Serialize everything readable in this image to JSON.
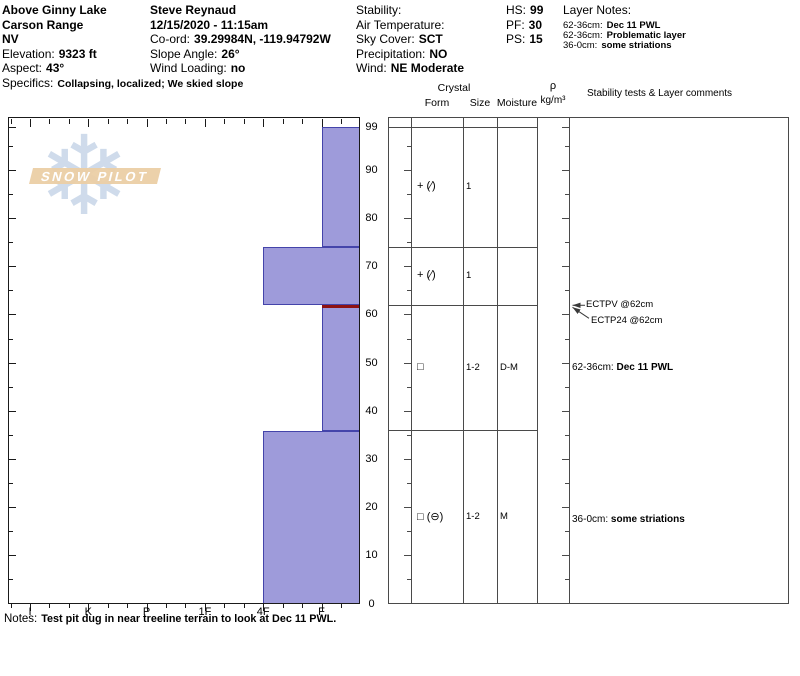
{
  "header": {
    "location": {
      "line1": "Above Ginny Lake",
      "line2": "Carson Range",
      "line3": "NV",
      "elevation_label": "Elevation:",
      "elevation": "9323 ft",
      "aspect_label": "Aspect:",
      "aspect": "43°",
      "specifics_label": "Specifics:",
      "specifics": "Collapsing, localized; We skied slope"
    },
    "observer": {
      "name": "Steve Reynaud",
      "datetime": "12/15/2020 - 11:15am",
      "coord_label": "Co-ord:",
      "coord": "39.29984N, -119.94792W",
      "slope_angle_label": "Slope Angle:",
      "slope_angle": "26°",
      "wind_loading_label": "Wind Loading:",
      "wind_loading": "no"
    },
    "conditions": {
      "stability_label": "Stability:",
      "air_temp_label": "Air Temperature:",
      "sky_label": "Sky Cover:",
      "sky": "SCT",
      "precip_label": "Precipitation:",
      "precip": "NO",
      "wind_label": "Wind:",
      "wind": "NE Moderate"
    },
    "measures": [
      {
        "label": "HS:",
        "value": "99"
      },
      {
        "label": "PF:",
        "value": "30"
      },
      {
        "label": "PS:",
        "value": "15"
      }
    ],
    "layer_notes": {
      "title": "Layer Notes:",
      "items": [
        {
          "range": "62-36cm:",
          "note": "Dec 11 PWL"
        },
        {
          "range": "62-36cm:",
          "note": "Problematic layer"
        },
        {
          "range": "36-0cm:",
          "note": "some striations"
        }
      ]
    }
  },
  "table_headers": {
    "crystal": "Crystal",
    "form": "Form",
    "size": "Size",
    "moisture": "Moisture",
    "rho": "ρ",
    "rho_units": "kg/m³",
    "stability": "Stability tests & Layer comments"
  },
  "logo": {
    "snowflake": "❄",
    "text": "SNOW PILOT"
  },
  "notes": {
    "label": "Notes:",
    "text": "Test pit dug in near treeline terrain to look at Dec 11 PWL."
  },
  "chart_data": {
    "type": "snow-profile-bar",
    "title": "",
    "depth_axis": {
      "unit": "cm",
      "max": 99,
      "tick_minor": 5,
      "tick_major": 10,
      "labels": [
        99,
        90,
        80,
        70,
        60,
        50,
        40,
        30,
        20,
        10,
        0
      ]
    },
    "hardness_categories": [
      "I",
      "K",
      "P",
      "1F",
      "4F",
      "F"
    ],
    "layers": [
      {
        "top_cm": 99,
        "bottom_cm": 74,
        "hardness": "F",
        "form": "+ (∕)",
        "size": "1",
        "moisture": "",
        "red_top": false
      },
      {
        "top_cm": 74,
        "bottom_cm": 62,
        "hardness": "4F",
        "form": "+ (∕)",
        "size": "1",
        "moisture": "",
        "red_top": false
      },
      {
        "top_cm": 62,
        "bottom_cm": 36,
        "hardness": "F",
        "form": "□",
        "size": "1-2",
        "moisture": "D-M",
        "red_top": true
      },
      {
        "top_cm": 36,
        "bottom_cm": 0,
        "hardness": "4F",
        "form": "□ (⊖)",
        "size": "1-2",
        "moisture": "M",
        "red_top": false
      }
    ],
    "tests": [
      {
        "label": "ECTPV @62cm",
        "depth_cm": 62
      },
      {
        "label": "ECTP24 @62cm",
        "depth_cm": 62
      }
    ],
    "comments": [
      {
        "range": "62-36cm:",
        "text": "Dec 11 PWL",
        "depth_cm": 49
      },
      {
        "range": "36-0cm:",
        "text": "some striations",
        "depth_cm": 17.5
      }
    ],
    "colors": {
      "bar_fill": "#9e9bda",
      "bar_border": "#4444aa",
      "red_layer": "#8e1212",
      "axis": "#1a1a1a",
      "table_line": "#4a4a4a"
    }
  }
}
